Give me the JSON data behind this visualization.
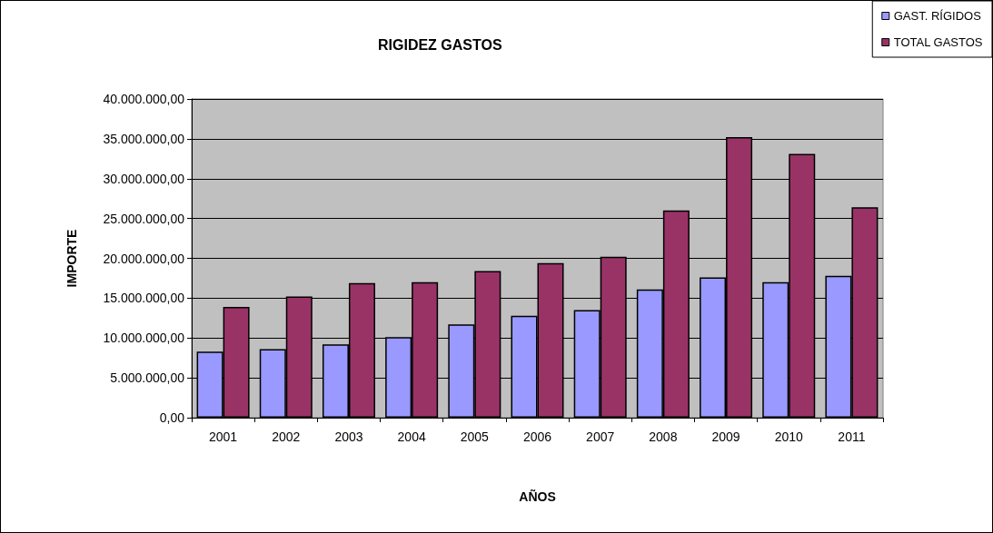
{
  "chart_data": {
    "type": "bar",
    "title": "RIGIDEZ GASTOS",
    "xlabel": "AÑOS",
    "ylabel": "IMPORTE",
    "categories": [
      "2001",
      "2002",
      "2003",
      "2004",
      "2005",
      "2006",
      "2007",
      "2008",
      "2009",
      "2010",
      "2011"
    ],
    "series": [
      {
        "name": "GAST. RÍGIDOS",
        "color": "#9999ff",
        "values": [
          8300000,
          8600000,
          9200000,
          10100000,
          11700000,
          12800000,
          13500000,
          16100000,
          17600000,
          17000000,
          17800000
        ]
      },
      {
        "name": "TOTAL GASTOS",
        "color": "#993366",
        "values": [
          13900000,
          15200000,
          16900000,
          17000000,
          18400000,
          19400000,
          20200000,
          26000000,
          35200000,
          33100000,
          26400000
        ]
      }
    ],
    "ylim": [
      0,
      40000000
    ],
    "yticks": [
      {
        "value": 0,
        "label": "0,00"
      },
      {
        "value": 5000000,
        "label": "5.000.000,00"
      },
      {
        "value": 10000000,
        "label": "10.000.000,00"
      },
      {
        "value": 15000000,
        "label": "15.000.000,00"
      },
      {
        "value": 20000000,
        "label": "20.000.000,00"
      },
      {
        "value": 25000000,
        "label": "25.000.000,00"
      },
      {
        "value": 30000000,
        "label": "30.000.000,00"
      },
      {
        "value": 35000000,
        "label": "35.000.000,00"
      },
      {
        "value": 40000000,
        "label": "40.000.000,00"
      }
    ],
    "grid": "y",
    "legend": "top right"
  }
}
